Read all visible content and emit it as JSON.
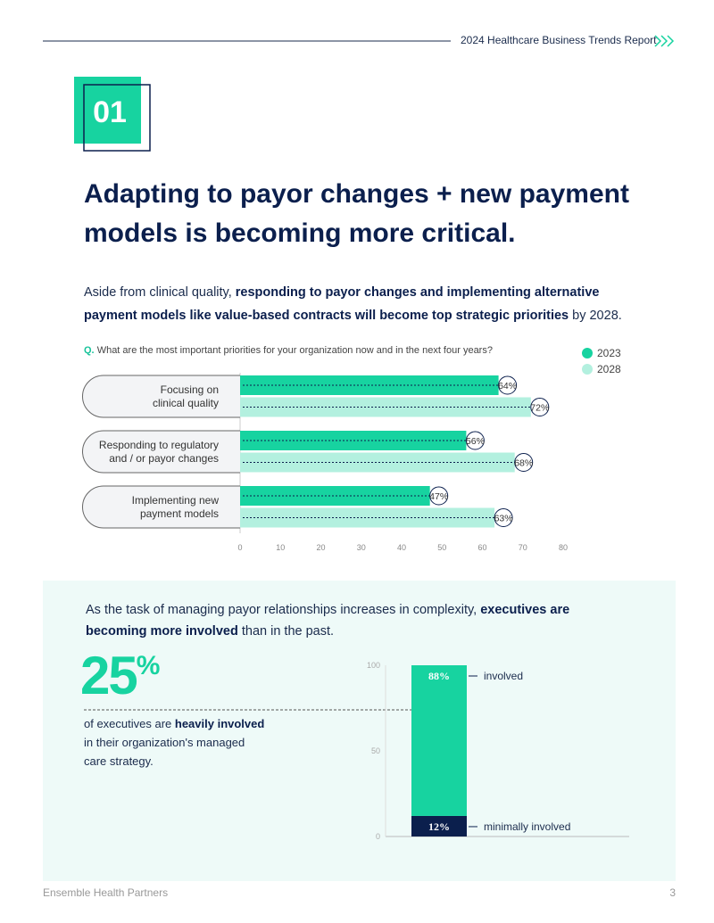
{
  "header": {
    "report_title": "2024 Healthcare Business Trends Report"
  },
  "section_number": "01",
  "headline": "Adapting to payor changes + new payment models is becoming more critical.",
  "intro": {
    "text_1": "Aside from clinical quality, ",
    "bold": "responding to payor changes and implementing alternative payment models like value-based contracts will become top strategic priorities",
    "text_2": " by 2028."
  },
  "panel": {
    "text_1": "As the task of managing payor relationships increases in complexity, ",
    "bold": "executives are becoming more involved",
    "text_2": " than in the past.",
    "stat_number": "25",
    "stat_unit": "%",
    "stat_text_1": "of executives are ",
    "stat_bold": "heavily involved",
    "stat_text_2": " in their organization's managed care strategy."
  },
  "chart_data": [
    {
      "type": "hbar",
      "question_prefix": "Q.",
      "question": "What are the most important priorities for your organization now and in the next four years?",
      "categories": [
        "Focusing on\nclinical quality",
        "Responding to regulatory\nand / or payor changes",
        "Implementing new\npayment models"
      ],
      "series": [
        {
          "name": "2023",
          "color": "#17d3a0",
          "values": [
            64,
            56,
            47
          ],
          "value_labels": [
            "64%",
            "56%",
            "47%"
          ]
        },
        {
          "name": "2028",
          "color": "#b3f0df",
          "values": [
            72,
            68,
            63
          ],
          "value_labels": [
            "72%",
            "68%",
            "63%"
          ]
        }
      ],
      "xlim": [
        0,
        80
      ],
      "xticks": [
        0,
        10,
        20,
        30,
        40,
        50,
        60,
        70,
        80
      ]
    },
    {
      "type": "stacked_bar",
      "series": [
        {
          "name": "minimally involved",
          "color": "#0b1f4d",
          "values": [
            12
          ],
          "value_labels": [
            "12%"
          ]
        },
        {
          "name": "involved",
          "color": "#17d3a0",
          "values": [
            88
          ],
          "value_labels": [
            "88%"
          ]
        }
      ],
      "ylim": [
        0,
        100
      ],
      "yticks": [
        0,
        50,
        100
      ]
    }
  ],
  "footer": {
    "company": "Ensemble Health Partners",
    "page": "3"
  }
}
